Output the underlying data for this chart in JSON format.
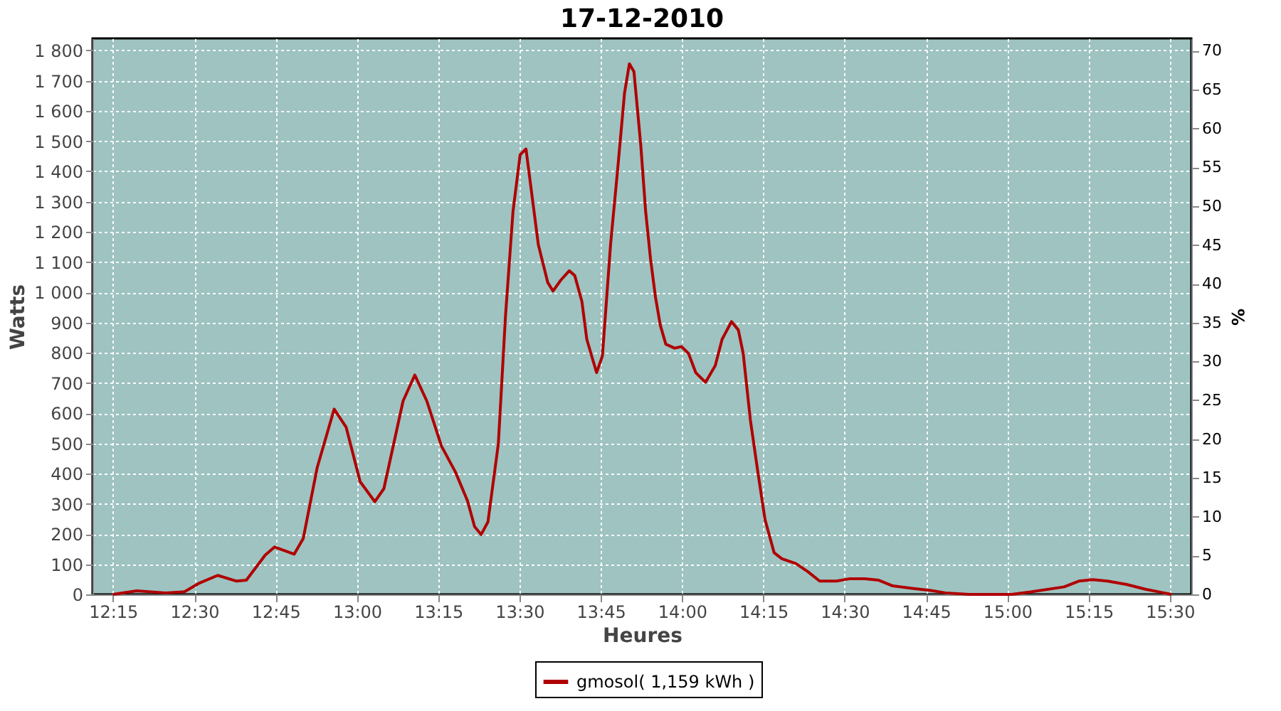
{
  "chart_data": {
    "type": "line",
    "title": "17-12-2010",
    "xlabel": "Heures",
    "ylabel": "Watts",
    "y2label": "%",
    "xlim": [
      12.187,
      15.566
    ],
    "xticks": [
      {
        "value": 12.25,
        "label": "12:15"
      },
      {
        "value": 12.5,
        "label": "12:30"
      },
      {
        "value": 12.75,
        "label": "12:45"
      },
      {
        "value": 13,
        "label": "13:00"
      },
      {
        "value": 13.25,
        "label": "13:15"
      },
      {
        "value": 13.5,
        "label": "13:30"
      },
      {
        "value": 13.75,
        "label": "13:45"
      },
      {
        "value": 14,
        "label": "14:00"
      },
      {
        "value": 14.25,
        "label": "14:15"
      },
      {
        "value": 14.5,
        "label": "14:30"
      },
      {
        "value": 14.75,
        "label": "14:45"
      },
      {
        "value": 15,
        "label": "15:00"
      },
      {
        "value": 15.25,
        "label": "15:15"
      },
      {
        "value": 15.5,
        "label": "15:30"
      }
    ],
    "ylim": [
      0,
      1840
    ],
    "yticks": [
      0,
      100,
      200,
      300,
      400,
      500,
      600,
      700,
      800,
      900,
      {
        "value": 1000,
        "label": "1 000"
      },
      {
        "value": 1100,
        "label": "1 100"
      },
      {
        "value": 1200,
        "label": "1 200"
      },
      {
        "value": 1300,
        "label": "1 300"
      },
      {
        "value": 1400,
        "label": "1 400"
      },
      {
        "value": 1500,
        "label": "1 500"
      },
      {
        "value": 1600,
        "label": "1 600"
      },
      {
        "value": 1700,
        "label": "1 700"
      },
      {
        "value": 1800,
        "label": "1 800"
      }
    ],
    "y2lim": [
      0,
      71.6
    ],
    "y2ticks": [
      0,
      5,
      10,
      15,
      20,
      25,
      30,
      35,
      40,
      45,
      50,
      55,
      60,
      65,
      70
    ],
    "grid": true,
    "legend": "bottom",
    "marker": "none",
    "line_style": "solid",
    "series": [
      {
        "name": "gmosol( 1,159 kWh )",
        "color": "#b00000",
        "x": [
          12.25,
          12.323,
          12.412,
          12.47,
          12.513,
          12.572,
          12.63,
          12.66,
          12.718,
          12.747,
          12.807,
          12.835,
          12.878,
          12.93,
          12.967,
          13.01,
          13.055,
          13.083,
          13.142,
          13.178,
          13.215,
          13.26,
          13.303,
          13.34,
          13.362,
          13.382,
          13.403,
          13.435,
          13.457,
          13.48,
          13.502,
          13.52,
          13.558,
          13.587,
          13.603,
          13.627,
          13.653,
          13.67,
          13.692,
          13.707,
          13.737,
          13.755,
          13.78,
          13.802,
          13.823,
          13.838,
          13.852,
          13.873,
          13.888,
          13.903,
          13.918,
          13.933,
          13.95,
          13.977,
          13.998,
          14.02,
          14.042,
          14.072,
          14.102,
          14.123,
          14.152,
          14.173,
          14.188,
          14.21,
          14.233,
          14.255,
          14.283,
          14.307,
          14.35,
          14.387,
          14.423,
          14.475,
          14.517,
          14.562,
          14.605,
          14.648,
          14.707,
          14.765,
          14.81,
          14.883,
          15.013,
          15.072,
          15.175,
          15.22,
          15.263,
          15.308,
          15.367,
          15.425,
          15.468,
          15.505
        ],
        "values": [
          0,
          12,
          5,
          9,
          36,
          63,
          44,
          47,
          130,
          157,
          133,
          185,
          420,
          613,
          553,
          373,
          307,
          350,
          640,
          726,
          640,
          491,
          405,
          310,
          224,
          198,
          240,
          499,
          922,
          1267,
          1455,
          1474,
          1157,
          1032,
          1004,
          1040,
          1071,
          1055,
          969,
          844,
          734,
          789,
          1157,
          1408,
          1659,
          1756,
          1730,
          1486,
          1267,
          1110,
          985,
          891,
          828,
          815,
          820,
          797,
          734,
          702,
          757,
          844,
          903,
          875,
          797,
          577,
          405,
          248,
          138,
          118,
          102,
          75,
          44,
          44,
          52,
          52,
          47,
          28,
          20,
          13,
          5,
          0,
          0,
          8,
          25,
          44,
          49,
          44,
          33,
          17,
          8,
          0
        ]
      }
    ]
  }
}
